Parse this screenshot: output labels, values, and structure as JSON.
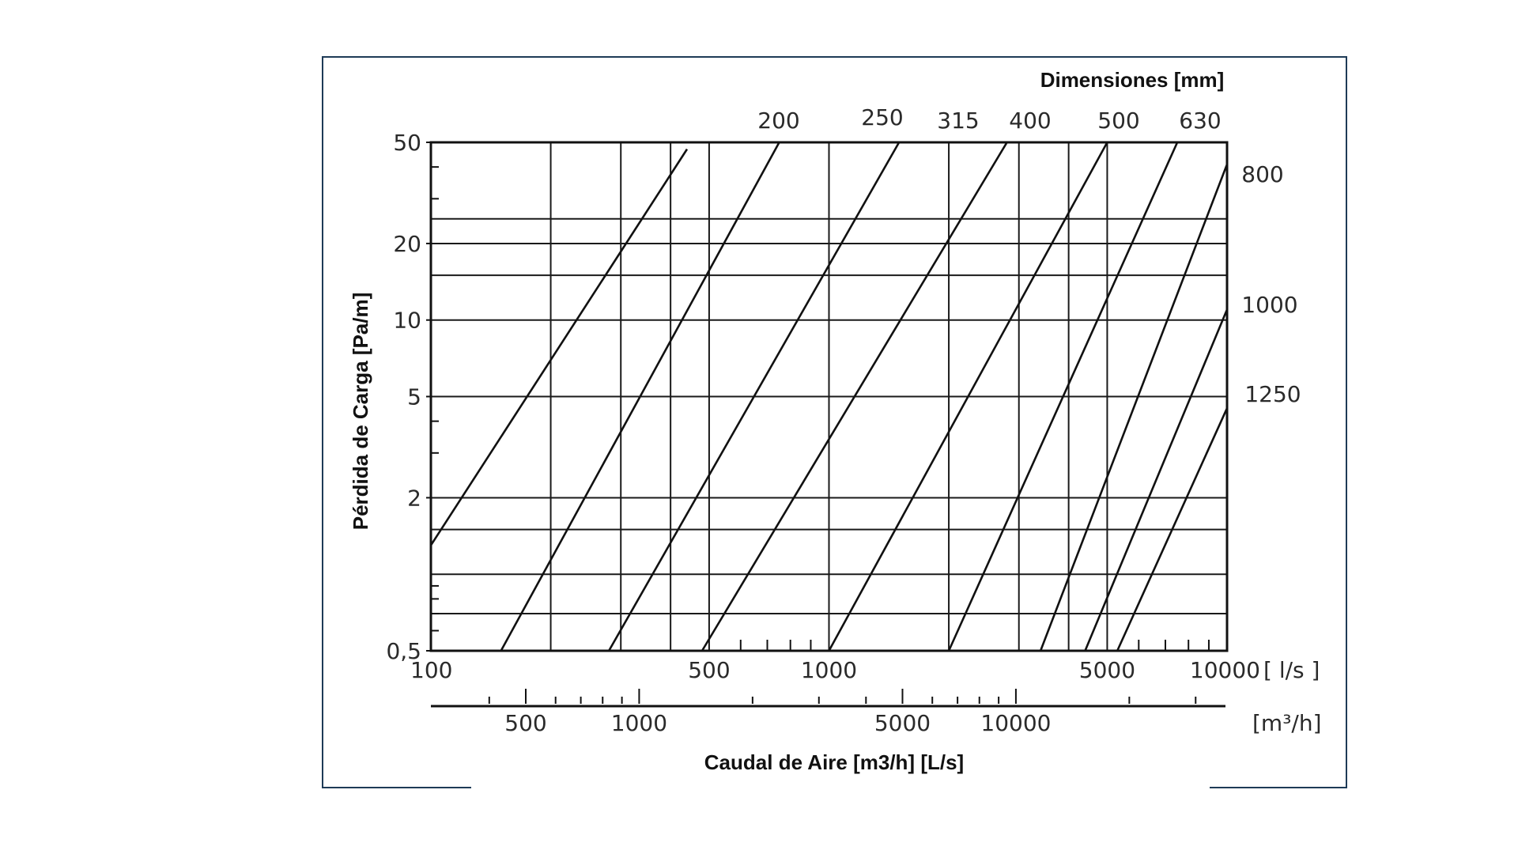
{
  "chart_data": {
    "type": "line",
    "title": "",
    "dimensions_title": "Dimensiones [mm]",
    "xlabel": "Caudal de Aire [m3/h] [L/s]",
    "ylabel": "Pérdida de Carga [Pa/m]",
    "x_scale": "log",
    "y_scale": "log",
    "xlim": [
      100,
      10000
    ],
    "ylim": [
      0.5,
      50
    ],
    "x_unit_primary": "[ l/s ]",
    "x_unit_secondary": "[m³/h]",
    "x_ticks_primary": [
      {
        "value": 100,
        "label": "100"
      },
      {
        "value": 500,
        "label": "500"
      },
      {
        "value": 1000,
        "label": "1000"
      },
      {
        "value": 5000,
        "label": "5000"
      },
      {
        "value": 10000,
        "label": "10000"
      }
    ],
    "x_ticks_secondary": [
      {
        "value": 500,
        "label": "500"
      },
      {
        "value": 1000,
        "label": "1000"
      },
      {
        "value": 5000,
        "label": "5000"
      },
      {
        "value": 10000,
        "label": "10000"
      }
    ],
    "y_ticks": [
      {
        "value": 0.5,
        "label": "0,5"
      },
      {
        "value": 2,
        "label": "2"
      },
      {
        "value": 5,
        "label": "5"
      },
      {
        "value": 10,
        "label": "10"
      },
      {
        "value": 20,
        "label": "20"
      },
      {
        "value": 50,
        "label": "50"
      }
    ],
    "grid": true,
    "series": [
      {
        "name": "200",
        "x": [
          100,
          440
        ],
        "y": [
          1.3,
          47
        ]
      },
      {
        "name": "250",
        "x": [
          150,
          750
        ],
        "y": [
          0.5,
          50
        ]
      },
      {
        "name": "315",
        "x": [
          280,
          1500
        ],
        "y": [
          0.5,
          50
        ]
      },
      {
        "name": "400",
        "x": [
          480,
          2800
        ],
        "y": [
          0.5,
          50
        ]
      },
      {
        "name": "500",
        "x": [
          1000,
          5000
        ],
        "y": [
          0.5,
          50
        ]
      },
      {
        "name": "630",
        "x": [
          2000,
          7500
        ],
        "y": [
          0.5,
          50
        ]
      },
      {
        "name": "800",
        "x": [
          3400,
          10000
        ],
        "y": [
          0.5,
          41
        ]
      },
      {
        "name": "1000",
        "x": [
          4400,
          10000
        ],
        "y": [
          0.5,
          11
        ]
      },
      {
        "name": "1250",
        "x": [
          5300,
          10000
        ],
        "y": [
          0.5,
          4.5
        ]
      }
    ]
  }
}
